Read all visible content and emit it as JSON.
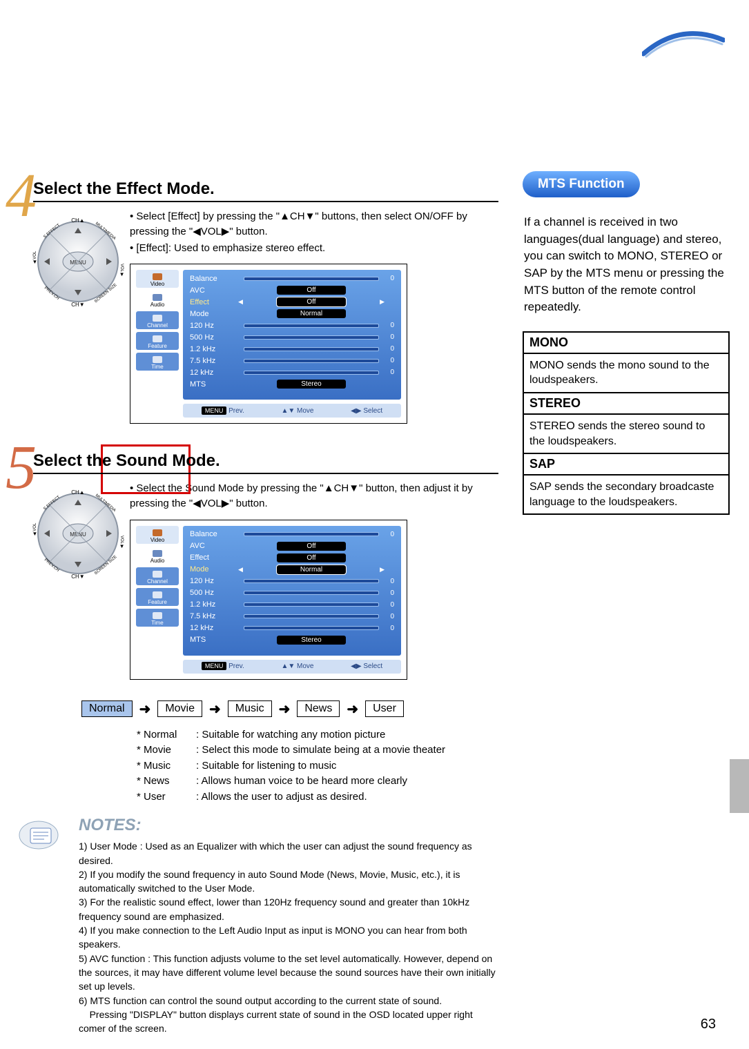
{
  "page_number": "63",
  "corner_stroke": "#2a66c4",
  "steps": [
    {
      "num": "4",
      "num_color": "#e0a64a",
      "heading": "Select the Effect Mode.",
      "bullets": [
        "• Select [Effect] by pressing the \"▲CH▼\" buttons, then select ON/OFF by pressing the \"◀VOL▶\" button.",
        "• [Effect]: Used to emphasize stereo effect."
      ],
      "osd": {
        "side_items": [
          {
            "label": "Video",
            "bg": "#dbe7f7",
            "icon": "#c46a2b"
          },
          {
            "label": "Audio",
            "bg": "#ffffff",
            "icon": "#6a8ac0",
            "sel": true
          },
          {
            "label": "Channel",
            "bg": "#5f8fd6",
            "icon": "#e0e8f5",
            "fg": "#ffffff"
          },
          {
            "label": "Feature",
            "bg": "#5f8fd6",
            "icon": "#e0e8f5",
            "fg": "#ffffff"
          },
          {
            "label": "Time",
            "bg": "#5f8fd6",
            "icon": "#e0e8f5",
            "fg": "#ffffff"
          }
        ],
        "rows": [
          {
            "label": "Balance",
            "type": "slider",
            "zero": "0"
          },
          {
            "label": "AVC",
            "type": "pill",
            "val": "Off"
          },
          {
            "label": "Effect",
            "type": "pill",
            "val": "Off",
            "sel": true,
            "hl": true
          },
          {
            "label": "Mode",
            "type": "pill",
            "val": "Normal"
          },
          {
            "label": "120 Hz",
            "type": "slider",
            "zero": "0"
          },
          {
            "label": "500 Hz",
            "type": "slider",
            "zero": "0"
          },
          {
            "label": "1.2  kHz",
            "type": "slider",
            "zero": "0"
          },
          {
            "label": "7.5  kHz",
            "type": "slider",
            "zero": "0"
          },
          {
            "label": "12   kHz",
            "type": "slider",
            "zero": "0"
          },
          {
            "label": "MTS",
            "type": "pill",
            "val": "Stereo"
          }
        ],
        "bottom": {
          "menu": "MENU",
          "prev": "Prev.",
          "move": "Move",
          "select": "Select"
        }
      }
    },
    {
      "num": "5",
      "num_color": "#d36b46",
      "heading": "Select the Sound Mode.",
      "bullets": [
        "• Select the Sound Mode by pressing the \"▲CH▼\" button, then adjust it by pressing the \"◀VOL▶\" button."
      ],
      "osd": {
        "side_items": [
          {
            "label": "Video",
            "bg": "#dbe7f7",
            "icon": "#c46a2b"
          },
          {
            "label": "Audio",
            "bg": "#ffffff",
            "icon": "#6a8ac0",
            "sel": true
          },
          {
            "label": "Channel",
            "bg": "#5f8fd6",
            "icon": "#e0e8f5",
            "fg": "#ffffff"
          },
          {
            "label": "Feature",
            "bg": "#5f8fd6",
            "icon": "#e0e8f5",
            "fg": "#ffffff"
          },
          {
            "label": "Time",
            "bg": "#5f8fd6",
            "icon": "#e0e8f5",
            "fg": "#ffffff"
          }
        ],
        "rows": [
          {
            "label": "Balance",
            "type": "slider",
            "zero": "0"
          },
          {
            "label": "AVC",
            "type": "pill",
            "val": "Off"
          },
          {
            "label": "Effect",
            "type": "pill",
            "val": "Off"
          },
          {
            "label": "Mode",
            "type": "pill",
            "val": "Normal",
            "sel": true,
            "hl": true
          },
          {
            "label": "120 Hz",
            "type": "slider",
            "zero": "0"
          },
          {
            "label": "500 Hz",
            "type": "slider",
            "zero": "0"
          },
          {
            "label": "1.2  kHz",
            "type": "slider",
            "zero": "0"
          },
          {
            "label": "7.5  kHz",
            "type": "slider",
            "zero": "0"
          },
          {
            "label": "12   kHz",
            "type": "slider",
            "zero": "0"
          },
          {
            "label": "MTS",
            "type": "pill",
            "val": "Stereo"
          }
        ],
        "bottom": {
          "menu": "MENU",
          "prev": "Prev.",
          "move": "Move",
          "select": "Select"
        }
      }
    }
  ],
  "remote_labels": {
    "up": "CH▲",
    "down": "CH▼",
    "menu": "MENU",
    "tl": "S.EFFECT",
    "tr": "MULTIMEDIA",
    "bl": "PREV.CH",
    "br": "SCREEN SIZE",
    "left": "VOL",
    "right": "VOL"
  },
  "mode_chain": [
    "Normal",
    "Movie",
    "Music",
    "News",
    "User"
  ],
  "mode_desc": [
    {
      "k": "* Normal",
      "v": ": Suitable for watching any motion picture"
    },
    {
      "k": "* Movie",
      "v": ": Select this mode to simulate being at a movie theater"
    },
    {
      "k": "* Music",
      "v": ": Suitable for listening to music"
    },
    {
      "k": "* News",
      "v": ": Allows human voice to be heard more clearly"
    },
    {
      "k": "* User",
      "v": ": Allows the user to adjust as desired."
    }
  ],
  "notes_heading": "NOTES:",
  "notes_color": "#8ea2b5",
  "notes": [
    "1) User Mode : Used as an Equalizer with which the user can adjust the sound frequency as desired.",
    "2) If you modify the sound frequency in auto Sound Mode (News, Movie, Music, etc.), it is automatically switched to the User Mode.",
    "3) For the realistic sound effect, lower than 120Hz frequency sound and greater than 10kHz frequency sound are emphasized.",
    "4) If you make connection to the Left Audio Input as input is MONO you can hear from both speakers.",
    "5) AVC function : This function adjusts volume to the set level automatically. However, depend on the sources, it may have different volume level because the sound sources have their own initially set up levels.",
    "6) MTS function can control the sound output according to the current state of sound.\n    Pressing \"DISPLAY\" button displays current state of sound in the OSD located upper right comer of the screen."
  ],
  "sidebar": {
    "title": "MTS Function",
    "intro": "If a channel is received in two languages(dual language) and stereo, you can switch to MONO, STEREO or SAP by the MTS menu or pressing the MTS button of the remote control repeatedly.",
    "rows": [
      {
        "h": "MONO",
        "t": "MONO sends the mono sound to the loudspeakers."
      },
      {
        "h": "STEREO",
        "t": "STEREO sends the stereo sound to the loudspeakers."
      },
      {
        "h": "SAP",
        "t": "SAP sends the secondary broadcaste language to the loudspeakers."
      }
    ]
  }
}
